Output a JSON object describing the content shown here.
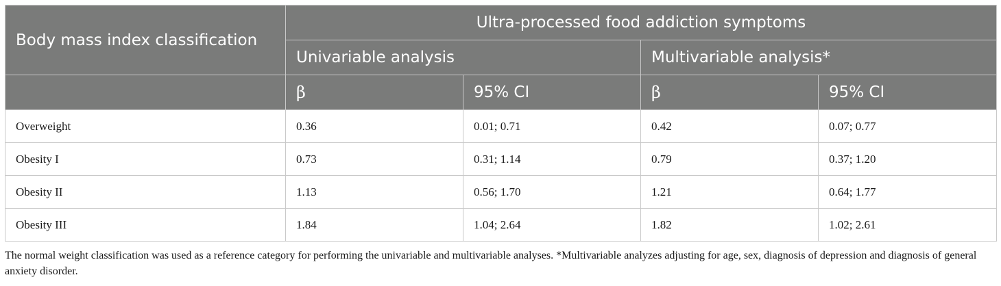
{
  "table": {
    "header": {
      "row_header": "Body mass index classification",
      "group_title": "Ultra-processed food addiction symptoms",
      "analyses": [
        "Univariable analysis",
        "Multivariable analysis*"
      ],
      "stats": [
        "β",
        "95% CI",
        "β",
        "95% CI"
      ]
    },
    "rows": [
      {
        "label": "Overweight",
        "uni_beta": "0.36",
        "uni_ci": "0.01; 0.71",
        "multi_beta": "0.42",
        "multi_ci": "0.07; 0.77"
      },
      {
        "label": "Obesity I",
        "uni_beta": "0.73",
        "uni_ci": "0.31; 1.14",
        "multi_beta": "0.79",
        "multi_ci": "0.37; 1.20"
      },
      {
        "label": "Obesity II",
        "uni_beta": "1.13",
        "uni_ci": "0.56; 1.70",
        "multi_beta": "1.21",
        "multi_ci": "0.64; 1.77"
      },
      {
        "label": "Obesity III",
        "uni_beta": "1.84",
        "uni_ci": "1.04; 2.64",
        "multi_beta": "1.82",
        "multi_ci": "1.02; 2.61"
      }
    ]
  },
  "footnote": "The normal weight classification was used as a reference category for performing the univariable and multivariable analyses. *Multivariable analyzes adjusting for age, sex, diagnosis of depression and diagnosis of general anxiety disorder.",
  "colors": {
    "header_bg": "#7a7b7a",
    "header_text": "#ffffff",
    "border": "#c9c9c9"
  }
}
